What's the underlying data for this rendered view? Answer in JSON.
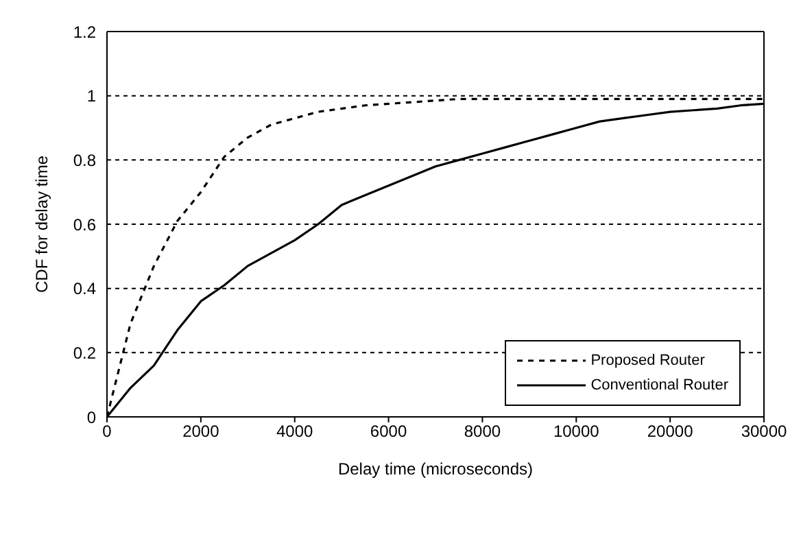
{
  "chart_data": {
    "type": "line",
    "xlabel": "Delay time (microseconds)",
    "ylabel": "CDF for delay time",
    "categories": [
      "0",
      null,
      null,
      null,
      "2000",
      null,
      null,
      null,
      "4000",
      null,
      null,
      null,
      "6000",
      null,
      null,
      null,
      "8000",
      null,
      null,
      null,
      "10000",
      null,
      null,
      null,
      "20000",
      null,
      null,
      null,
      "30000"
    ],
    "series": [
      {
        "name": "Proposed Router",
        "color": "#000000",
        "line_style": "dashed",
        "values": [
          0,
          0.29,
          0.47,
          0.61,
          0.7,
          0.81,
          0.87,
          0.91,
          0.93,
          0.95,
          0.96,
          0.97,
          0.975,
          0.98,
          0.985,
          0.99,
          0.99,
          0.99,
          0.99,
          0.99,
          0.99,
          0.99,
          0.99,
          0.99,
          0.99,
          0.99,
          0.99,
          0.99,
          0.99
        ]
      },
      {
        "name": "Conventional Router",
        "color": "#000000",
        "line_style": "solid",
        "values": [
          0,
          0.09,
          0.16,
          0.27,
          0.36,
          0.41,
          0.47,
          0.51,
          0.55,
          0.6,
          0.66,
          0.69,
          0.72,
          0.75,
          0.78,
          0.8,
          0.82,
          0.84,
          0.86,
          0.88,
          0.9,
          0.92,
          0.93,
          0.94,
          0.95,
          0.955,
          0.96,
          0.97,
          0.975
        ]
      }
    ],
    "ylim": [
      0,
      1.2
    ],
    "yticks": [
      0,
      0.2,
      0.4,
      0.6,
      0.8,
      1,
      1.2
    ],
    "grid": "y",
    "legend": "bottom right",
    "marker": "none"
  }
}
